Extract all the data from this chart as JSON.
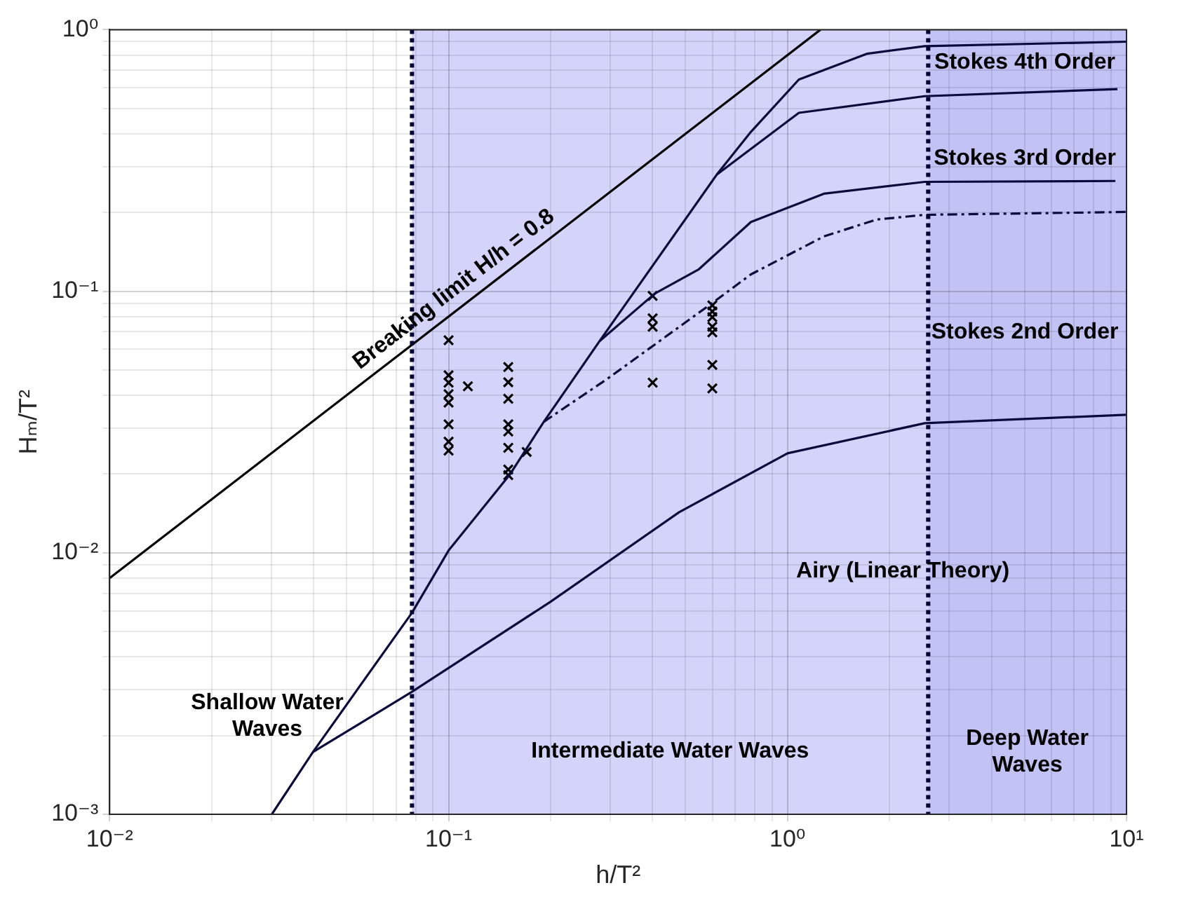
{
  "chart_data": {
    "type": "line",
    "xlabel": "h/T²",
    "ylabel": "Hₘ/T²",
    "log": "xy",
    "grid": true,
    "legend": false,
    "xlim": [
      0.01,
      10
    ],
    "ylim": [
      0.001,
      1
    ],
    "xticks": [
      {
        "value": 0.01,
        "label": "10⁻²"
      },
      {
        "value": 0.02,
        "label": null
      },
      {
        "value": 0.03,
        "label": null
      },
      {
        "value": 0.04,
        "label": null
      },
      {
        "value": 0.05,
        "label": null
      },
      {
        "value": 0.06,
        "label": null
      },
      {
        "value": 0.07,
        "label": null
      },
      {
        "value": 0.08,
        "label": null
      },
      {
        "value": 0.09,
        "label": null
      },
      {
        "value": 0.1,
        "label": "10⁻¹"
      },
      {
        "value": 0.2,
        "label": null
      },
      {
        "value": 0.3,
        "label": null
      },
      {
        "value": 0.4,
        "label": null
      },
      {
        "value": 0.5,
        "label": null
      },
      {
        "value": 0.6,
        "label": null
      },
      {
        "value": 0.7,
        "label": null
      },
      {
        "value": 0.8,
        "label": null
      },
      {
        "value": 0.9,
        "label": null
      },
      {
        "value": 1,
        "label": "10⁰"
      },
      {
        "value": 2,
        "label": null
      },
      {
        "value": 3,
        "label": null
      },
      {
        "value": 4,
        "label": null
      },
      {
        "value": 5,
        "label": null
      },
      {
        "value": 6,
        "label": null
      },
      {
        "value": 7,
        "label": null
      },
      {
        "value": 8,
        "label": null
      },
      {
        "value": 9,
        "label": null
      },
      {
        "value": 10,
        "label": "10¹"
      }
    ],
    "yticks": [
      {
        "value": 0.001,
        "label": "10⁻³"
      },
      {
        "value": 0.002,
        "label": null
      },
      {
        "value": 0.003,
        "label": null
      },
      {
        "value": 0.004,
        "label": null
      },
      {
        "value": 0.005,
        "label": null
      },
      {
        "value": 0.006,
        "label": null
      },
      {
        "value": 0.007,
        "label": null
      },
      {
        "value": 0.008,
        "label": null
      },
      {
        "value": 0.009,
        "label": null
      },
      {
        "value": 0.01,
        "label": "10⁻²"
      },
      {
        "value": 0.02,
        "label": null
      },
      {
        "value": 0.03,
        "label": null
      },
      {
        "value": 0.04,
        "label": null
      },
      {
        "value": 0.05,
        "label": null
      },
      {
        "value": 0.06,
        "label": null
      },
      {
        "value": 0.07,
        "label": null
      },
      {
        "value": 0.08,
        "label": null
      },
      {
        "value": 0.09,
        "label": null
      },
      {
        "value": 0.1,
        "label": "10⁻¹"
      },
      {
        "value": 0.2,
        "label": null
      },
      {
        "value": 0.3,
        "label": null
      },
      {
        "value": 0.4,
        "label": null
      },
      {
        "value": 0.5,
        "label": null
      },
      {
        "value": 0.6,
        "label": null
      },
      {
        "value": 0.7,
        "label": null
      },
      {
        "value": 0.8,
        "label": null
      },
      {
        "value": 0.9,
        "label": null
      },
      {
        "value": 1,
        "label": "10⁰"
      }
    ],
    "bands": [
      {
        "axis": "x",
        "from": 0.078,
        "to": 2.6,
        "color": "#d4d4fa",
        "label": "Intermediate Water Waves"
      },
      {
        "axis": "x",
        "from": 2.6,
        "to": 10,
        "color": "#c2c2f4",
        "label": "Deep Water Waves"
      }
    ],
    "ref_lines": [
      {
        "axis": "x",
        "value": 0.078,
        "color": "#000033",
        "line_style": "dotted"
      },
      {
        "axis": "x",
        "value": 2.6,
        "color": "#000033",
        "line_style": "dotted"
      }
    ],
    "series": [
      {
        "name": "Breaking limit H/h = 0.8",
        "color": "#000000",
        "line_style": "solid",
        "x": [
          0.01,
          1.25
        ],
        "values": [
          0.008,
          1.0
        ]
      },
      {
        "color": "#0a0a3c",
        "line_style": "solid",
        "x": [
          0.0301,
          0.0398,
          0.078,
          0.1,
          0.152,
          0.191,
          0.279,
          0.618,
          0.78,
          1.08,
          1.72,
          2.54,
          10
        ],
        "values": [
          0.001,
          0.00173,
          0.0059,
          0.0102,
          0.02,
          0.0317,
          0.0645,
          0.279,
          0.407,
          0.645,
          0.81,
          0.865,
          0.9
        ]
      },
      {
        "color": "#0a0a3c",
        "line_style": "solid",
        "x": [
          0.618,
          1.08,
          2.54,
          9.4
        ],
        "values": [
          0.279,
          0.481,
          0.557,
          0.593
        ]
      },
      {
        "color": "#0a0a3c",
        "line_style": "solid",
        "x": [
          0.279,
          0.406,
          0.546,
          0.78,
          1.28,
          2.54,
          9.27
        ],
        "values": [
          0.0645,
          0.098,
          0.121,
          0.184,
          0.236,
          0.262,
          0.264
        ]
      },
      {
        "color": "#0a0a3c",
        "line_style": "dashed",
        "x": [
          0.191,
          0.293,
          0.6,
          0.78,
          1.28,
          1.83,
          2.54,
          10
        ],
        "values": [
          0.0317,
          0.0461,
          0.0902,
          0.116,
          0.162,
          0.188,
          0.196,
          0.201
        ]
      },
      {
        "color": "#0a0a3c",
        "line_style": "solid",
        "x": [
          0.0398,
          0.078,
          0.2,
          0.479,
          1,
          2.54,
          10
        ],
        "values": [
          0.00173,
          0.00294,
          0.0065,
          0.0143,
          0.024,
          0.0313,
          0.0337
        ]
      },
      {
        "type": "scatter",
        "marker": "cross",
        "color": "#000000",
        "x": [
          0.1,
          0.1,
          0.1,
          0.1,
          0.1,
          0.1,
          0.1,
          0.1,
          0.114,
          0.15,
          0.15,
          0.15,
          0.15,
          0.15,
          0.15,
          0.15,
          0.15,
          0.17,
          0.4,
          0.4,
          0.4,
          0.4,
          0.6,
          0.6,
          0.6,
          0.6,
          0.6,
          0.6,
          0.6
        ],
        "values": [
          0.065,
          0.0477,
          0.0447,
          0.0404,
          0.0375,
          0.031,
          0.0266,
          0.0246,
          0.0433,
          0.0513,
          0.0449,
          0.0388,
          0.031,
          0.0291,
          0.0252,
          0.0208,
          0.0198,
          0.0243,
          0.096,
          0.0788,
          0.0732,
          0.0447,
          0.0883,
          0.0837,
          0.0796,
          0.0732,
          0.0696,
          0.0523,
          0.0425
        ]
      }
    ],
    "annotations": [
      "Stokes 4th Order",
      "Stokes 3rd Order",
      "Stokes 2nd Order",
      "Airy (Linear Theory)",
      "Shallow Water Waves"
    ]
  }
}
